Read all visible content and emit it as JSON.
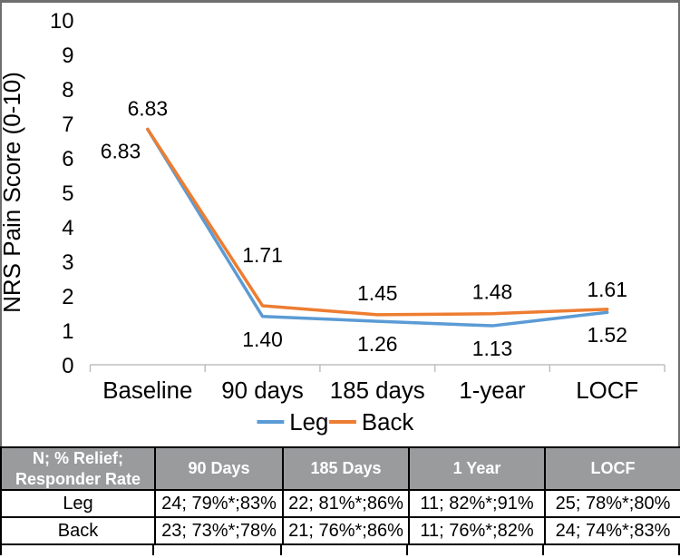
{
  "chart_data": {
    "type": "line",
    "title": "",
    "xlabel": "",
    "ylabel": "NRS Pain Score (0-10)",
    "ylim": [
      0,
      10
    ],
    "yticks": [
      0,
      1,
      2,
      3,
      4,
      5,
      6,
      7,
      8,
      9,
      10
    ],
    "categories": [
      "Baseline",
      "90 days",
      "185 days",
      "1-year",
      "LOCF"
    ],
    "series": [
      {
        "name": "Leg",
        "color": "#5B9BD5",
        "values": [
          6.83,
          1.4,
          1.26,
          1.13,
          1.52
        ],
        "labels": [
          "6.83",
          "1.40",
          "1.26",
          "1.13",
          "1.52"
        ]
      },
      {
        "name": "Back",
        "color": "#ED7D31",
        "values": [
          6.83,
          1.71,
          1.45,
          1.48,
          1.61
        ],
        "labels": [
          "6.83",
          "1.71",
          "1.45",
          "1.48",
          "1.61"
        ]
      }
    ],
    "grid": false,
    "legend_position": "bottom",
    "axis_color": "#BFBFBF",
    "text_color": "#000000"
  },
  "table": {
    "header": [
      "N; % Relief;\nResponder Rate",
      "90 Days",
      "185 Days",
      "1 Year",
      "LOCF"
    ],
    "rows": [
      {
        "label": "Leg",
        "cells": [
          "24; 79%*;83%",
          "22; 81%*;86%",
          "11; 82%*;91%",
          "25; 78%*;80%"
        ]
      },
      {
        "label": "Back",
        "cells": [
          "23; 73%*;78%",
          "21; 76%*;86%",
          "11; 76%*;82%",
          "24; 74%*;83%"
        ]
      }
    ],
    "header_bg": "#9a9b9d",
    "header_text_color": "#FFFFFF",
    "border_color": "#000000"
  }
}
